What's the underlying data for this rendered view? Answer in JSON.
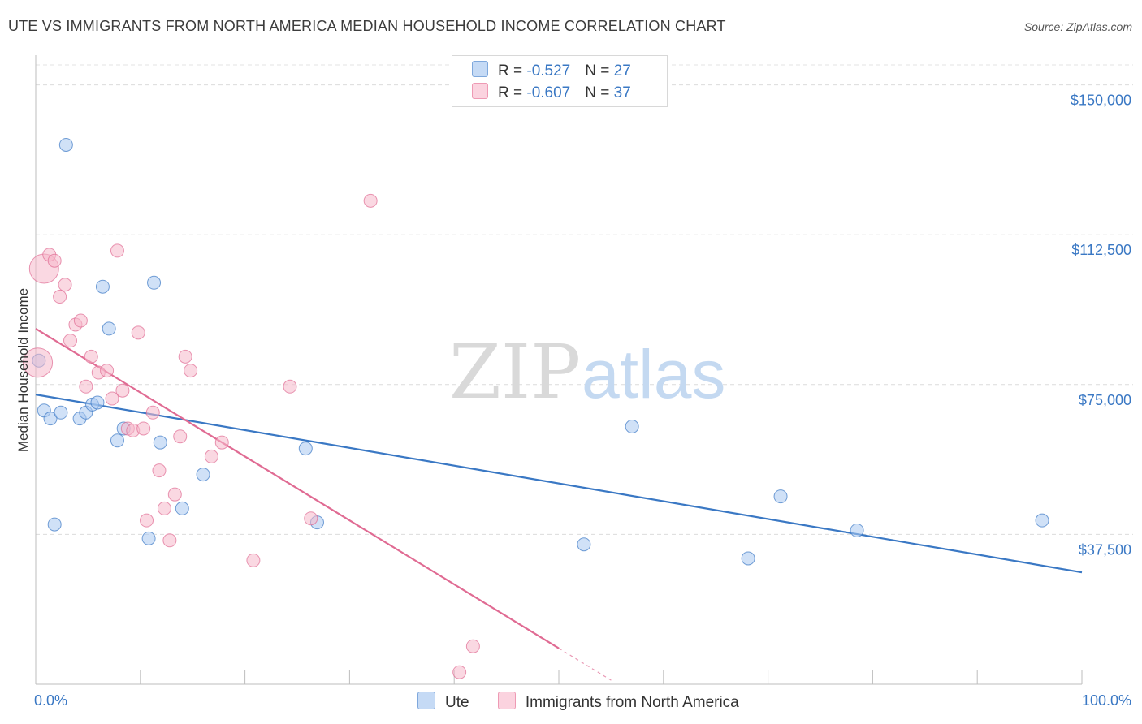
{
  "title": "UTE VS IMMIGRANTS FROM NORTH AMERICA MEDIAN HOUSEHOLD INCOME CORRELATION CHART",
  "source": "Source: ZipAtlas.com",
  "watermark": {
    "zip": "ZIP",
    "atlas": "atlas"
  },
  "legend": {
    "rows": [
      {
        "r_label": "R = ",
        "r_value": "-0.527",
        "n_label": "N = ",
        "n_value": "27",
        "color": "#a9c8f0"
      },
      {
        "r_label": "R = ",
        "r_value": "-0.607",
        "n_label": "N = ",
        "n_value": "37",
        "color": "#f6b8cb"
      }
    ]
  },
  "bottom_legend": [
    {
      "label": "Ute",
      "color": "#a9c8f0"
    },
    {
      "label": "Immigrants from North America",
      "color": "#f6b8cb"
    }
  ],
  "chart_data": {
    "type": "scatter",
    "xlabel": "",
    "ylabel": "Median Household Income",
    "xlim": [
      0,
      100
    ],
    "ylim": [
      0,
      155000
    ],
    "x_tick_labels": [
      "0.0%",
      "100.0%"
    ],
    "y_ticks": [
      37500,
      75000,
      112500,
      150000
    ],
    "y_tick_labels": [
      "$37,500",
      "$75,000",
      "$112,500",
      "$150,000"
    ],
    "grid": true,
    "series": [
      {
        "name": "Ute",
        "color": "#3a78c4",
        "fill": "#a9c8f0",
        "points": [
          [
            0.3,
            81000
          ],
          [
            0.8,
            68500
          ],
          [
            1.4,
            66500
          ],
          [
            2.4,
            68000
          ],
          [
            2.9,
            135000
          ],
          [
            4.2,
            66500
          ],
          [
            4.8,
            68000
          ],
          [
            5.4,
            70000
          ],
          [
            5.9,
            70500
          ],
          [
            6.4,
            99500
          ],
          [
            7.0,
            89000
          ],
          [
            7.8,
            61000
          ],
          [
            8.4,
            64000
          ],
          [
            10.8,
            36500
          ],
          [
            11.3,
            100500
          ],
          [
            11.9,
            60500
          ],
          [
            14.0,
            44000
          ],
          [
            16.0,
            52500
          ],
          [
            1.8,
            40000
          ],
          [
            25.8,
            59000
          ],
          [
            26.9,
            40500
          ],
          [
            52.4,
            35000
          ],
          [
            57.0,
            64500
          ],
          [
            68.1,
            31500
          ],
          [
            71.2,
            47000
          ],
          [
            78.5,
            38500
          ],
          [
            96.2,
            41000
          ]
        ],
        "trend": {
          "x": [
            0,
            100
          ],
          "y": [
            72500,
            28000
          ]
        }
      },
      {
        "name": "Immigrants from North America",
        "color": "#e06b93",
        "fill": "#f6b8cb",
        "points": [
          [
            0.2,
            80500
          ],
          [
            0.8,
            104000
          ],
          [
            1.3,
            107500
          ],
          [
            1.8,
            106000
          ],
          [
            2.3,
            97000
          ],
          [
            2.8,
            100000
          ],
          [
            3.3,
            86000
          ],
          [
            3.8,
            90000
          ],
          [
            4.3,
            91000
          ],
          [
            4.8,
            74500
          ],
          [
            5.3,
            82000
          ],
          [
            6.0,
            78000
          ],
          [
            6.8,
            78500
          ],
          [
            7.3,
            71500
          ],
          [
            7.8,
            108500
          ],
          [
            8.3,
            73500
          ],
          [
            8.8,
            64000
          ],
          [
            9.3,
            63500
          ],
          [
            9.8,
            88000
          ],
          [
            10.3,
            64000
          ],
          [
            10.6,
            41000
          ],
          [
            11.2,
            68000
          ],
          [
            11.8,
            53500
          ],
          [
            12.3,
            44000
          ],
          [
            12.8,
            36000
          ],
          [
            13.3,
            47500
          ],
          [
            13.8,
            62000
          ],
          [
            14.3,
            82000
          ],
          [
            14.8,
            78500
          ],
          [
            16.8,
            57000
          ],
          [
            17.8,
            60500
          ],
          [
            20.8,
            31000
          ],
          [
            24.3,
            74500
          ],
          [
            26.3,
            41500
          ],
          [
            32.0,
            121000
          ],
          [
            40.5,
            3000
          ],
          [
            41.8,
            9500
          ]
        ],
        "trend": {
          "x": [
            0,
            50
          ],
          "y": [
            89000,
            9000
          ]
        },
        "trend_dashed": {
          "x": [
            50,
            55
          ],
          "y": [
            9000,
            1000
          ]
        }
      }
    ]
  }
}
